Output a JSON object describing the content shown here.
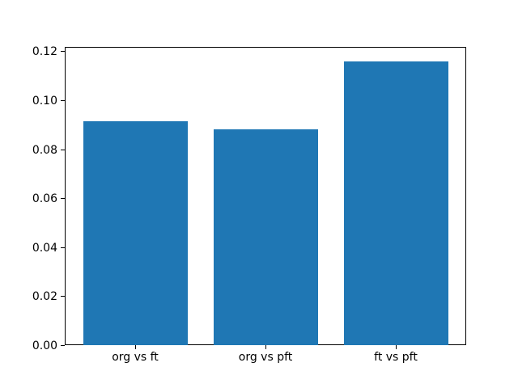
{
  "chart_data": {
    "type": "bar",
    "categories": [
      "org vs ft",
      "org vs pft",
      "ft vs pft"
    ],
    "values": [
      0.0915,
      0.088,
      0.116
    ],
    "x": [
      0,
      1,
      2
    ],
    "title": "",
    "xlabel": "",
    "ylabel": "",
    "ylim": [
      0,
      0.1218
    ],
    "xlim": [
      -0.54,
      2.54
    ],
    "yticks": [
      0.0,
      0.02,
      0.04,
      0.06,
      0.08,
      0.1,
      0.12
    ],
    "ytick_labels": [
      "0.00",
      "0.02",
      "0.04",
      "0.06",
      "0.08",
      "0.10",
      "0.12"
    ],
    "bar_width": 0.8,
    "bar_color": "#1f77b4",
    "spine_color": "#000000",
    "text_color": "#000000",
    "background": "#ffffff",
    "grid": false,
    "legend": null
  }
}
